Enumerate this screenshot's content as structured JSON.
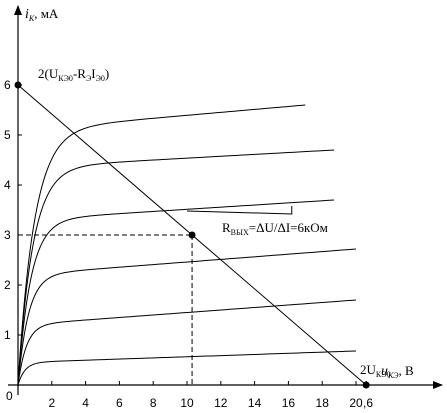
{
  "chart_data": {
    "type": "line",
    "xlabel_var": "u",
    "xlabel_sub": "КЭ",
    "xlabel_unit": ", В",
    "ylabel_var": "i",
    "ylabel_sub": "К",
    "ylabel_unit": ", мА",
    "origin_label": "0",
    "xlim": [
      0,
      21
    ],
    "ylim": [
      0,
      7
    ],
    "x_ticks": [
      2,
      4,
      6,
      8,
      10,
      12,
      14,
      16,
      18,
      20
    ],
    "x_tick_labels": [
      "2",
      "4",
      "6",
      "8",
      "10",
      "12",
      "14",
      "16",
      "18",
      "20"
    ],
    "x_extra_tick": 20.6,
    "x_extra_tick_label": ",6",
    "y_ticks": [
      1,
      2,
      3,
      4,
      5,
      6
    ],
    "y_tick_labels": [
      "1",
      "2",
      "3",
      "4",
      "5",
      "6"
    ],
    "curves": [
      {
        "sat": 0.45,
        "end": 0.68,
        "xmax": 20.0
      },
      {
        "sat": 1.2,
        "end": 1.7,
        "xmax": 20.0
      },
      {
        "sat": 2.2,
        "end": 2.72,
        "xmax": 20.0
      },
      {
        "sat": 3.3,
        "end": 3.7,
        "xmax": 18.7
      },
      {
        "sat": 4.35,
        "end": 4.7,
        "xmax": 18.7
      },
      {
        "sat": 5.1,
        "end": 5.6,
        "xmax": 17.0
      }
    ],
    "load_line": {
      "x": [
        0,
        20.6
      ],
      "y": [
        6,
        0
      ]
    },
    "operating_point": {
      "x": 10.3,
      "y": 3.0
    },
    "triangle": {
      "x1": 10.0,
      "y1": 3.48,
      "x2": 16.2,
      "yb": 3.42,
      "yt": 3.58
    },
    "annotations": {
      "top_main": "2(U",
      "top_sub1": "КЭ0",
      "top_mid1": "-R",
      "top_sub2": "Э",
      "top_mid2": "I",
      "top_sub3": "Э0",
      "top_end": ")",
      "bottom_main": "2U",
      "bottom_sub": "КЭ0",
      "rvyh_main": "R",
      "rvyh_sub": "ВЫХ",
      "rvyh_rest": "=ΔU/ΔI=6кОм"
    }
  }
}
